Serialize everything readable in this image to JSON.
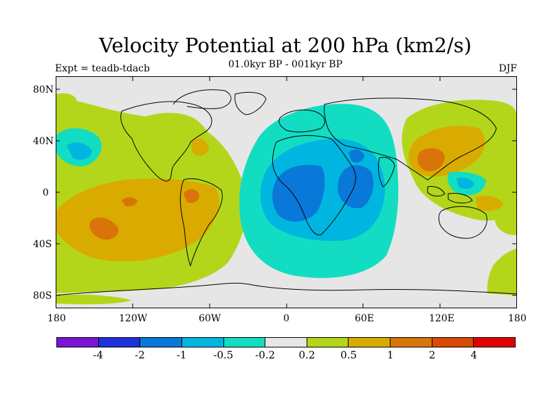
{
  "title": "Velocity Potential at 200 hPa (km2/s)",
  "subtitle": "01.0kyr BP - 001kyr BP",
  "left_string": "Expt = teadb-tdacb",
  "right_string": "DJF",
  "y_ticks": [
    "80N",
    "40N",
    "0",
    "40S",
    "80S"
  ],
  "x_ticks": [
    "180",
    "120W",
    "60W",
    "0",
    "60E",
    "120E",
    "180"
  ],
  "colorbar": {
    "colors": [
      "#7a14d6",
      "#1f2fd9",
      "#0a78d8",
      "#00b6e0",
      "#12ddc2",
      "#e6e6e6",
      "#b3d61a",
      "#d9ab00",
      "#d9740a",
      "#d94a05",
      "#e00000"
    ],
    "labels": [
      "-4",
      "-2",
      "-1",
      "-0.5",
      "-0.2",
      "0.2",
      "0.5",
      "1",
      "2",
      "4"
    ]
  },
  "map": {
    "background": "#e6e6e6",
    "coastline_color": "#000000"
  }
}
